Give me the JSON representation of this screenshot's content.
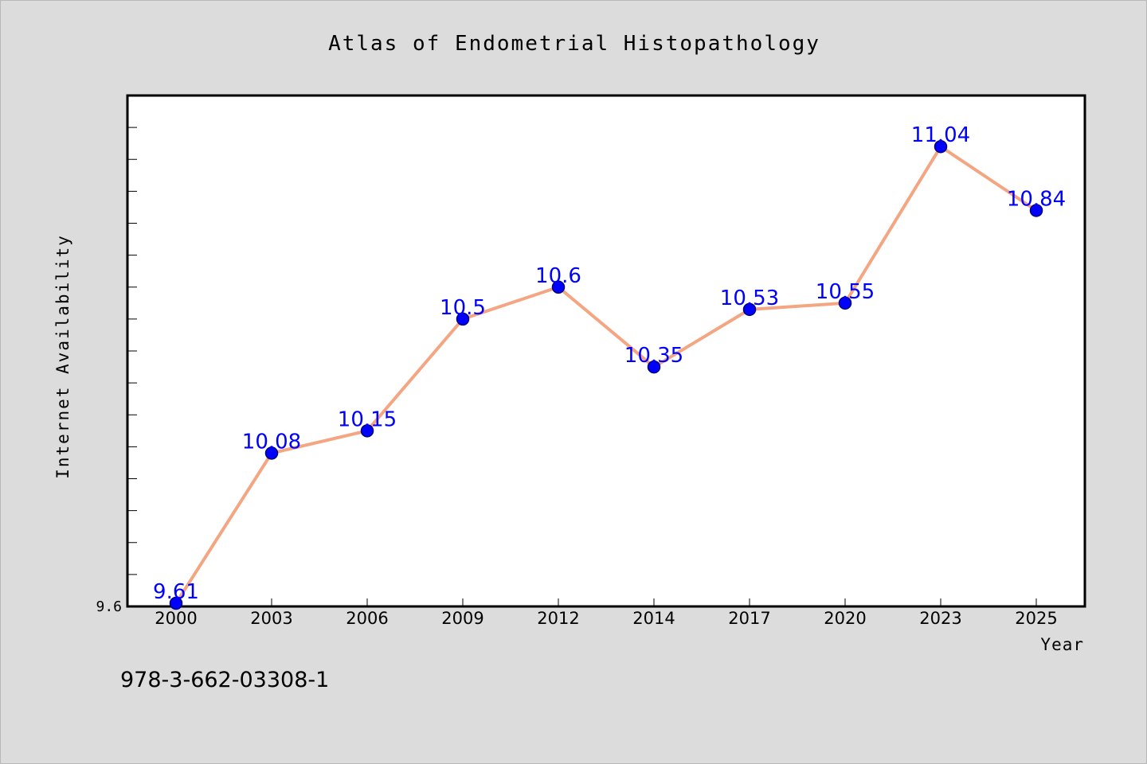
{
  "chart_data": {
    "type": "line",
    "title": "Atlas of Endometrial Histopathology",
    "xlabel": "Year",
    "ylabel": "Internet Availability",
    "categories": [
      "2000",
      "2003",
      "2006",
      "2009",
      "2012",
      "2014",
      "2017",
      "2020",
      "2023",
      "2025"
    ],
    "values": [
      9.61,
      10.08,
      10.15,
      10.5,
      10.6,
      10.35,
      10.53,
      10.55,
      11.04,
      10.84
    ],
    "data_labels": [
      "9.61",
      "10.08",
      "10.15",
      "10.5",
      "10.6",
      "10.35",
      "10.53",
      "10.55",
      "11.04",
      "10.84"
    ],
    "y_tick_label": "9.6",
    "ylim": [
      9.6,
      11.2
    ],
    "grid": false,
    "legend": "none",
    "colors": {
      "line": "#f4a582",
      "marker": "#0000ff",
      "marker_edge": "#000080",
      "data_label": "#0000ff",
      "plot_bg": "#ffffff",
      "figure_bg": "#dcdcdc"
    }
  },
  "footer": {
    "isbn": "978-3-662-03308-1"
  }
}
